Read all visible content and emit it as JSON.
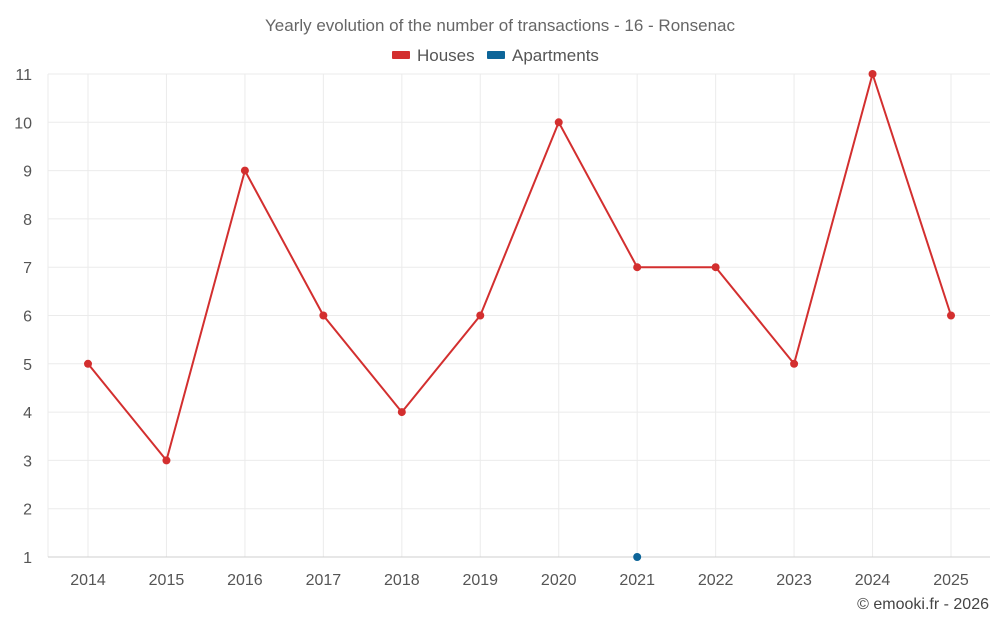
{
  "chart_data": {
    "type": "line",
    "title": "Yearly evolution of the number of transactions - 16 - Ronsenac",
    "x": [
      "2014",
      "2015",
      "2016",
      "2017",
      "2018",
      "2019",
      "2020",
      "2021",
      "2022",
      "2023",
      "2024",
      "2025"
    ],
    "y_ticks": [
      "1",
      "2",
      "3",
      "4",
      "5",
      "6",
      "7",
      "8",
      "9",
      "10",
      "11"
    ],
    "ylim": [
      1,
      11
    ],
    "grid": true,
    "legend_position": "top-center",
    "series": [
      {
        "name": "Houses",
        "color": "#d32f2f",
        "values": [
          5,
          3,
          9,
          6,
          4,
          6,
          10,
          7,
          7,
          5,
          11,
          6
        ]
      },
      {
        "name": "Apartments",
        "color": "#0d6599",
        "values": [
          null,
          null,
          null,
          null,
          null,
          null,
          null,
          1,
          null,
          null,
          null,
          null
        ]
      }
    ]
  },
  "credit": "© emooki.fr - 2026"
}
